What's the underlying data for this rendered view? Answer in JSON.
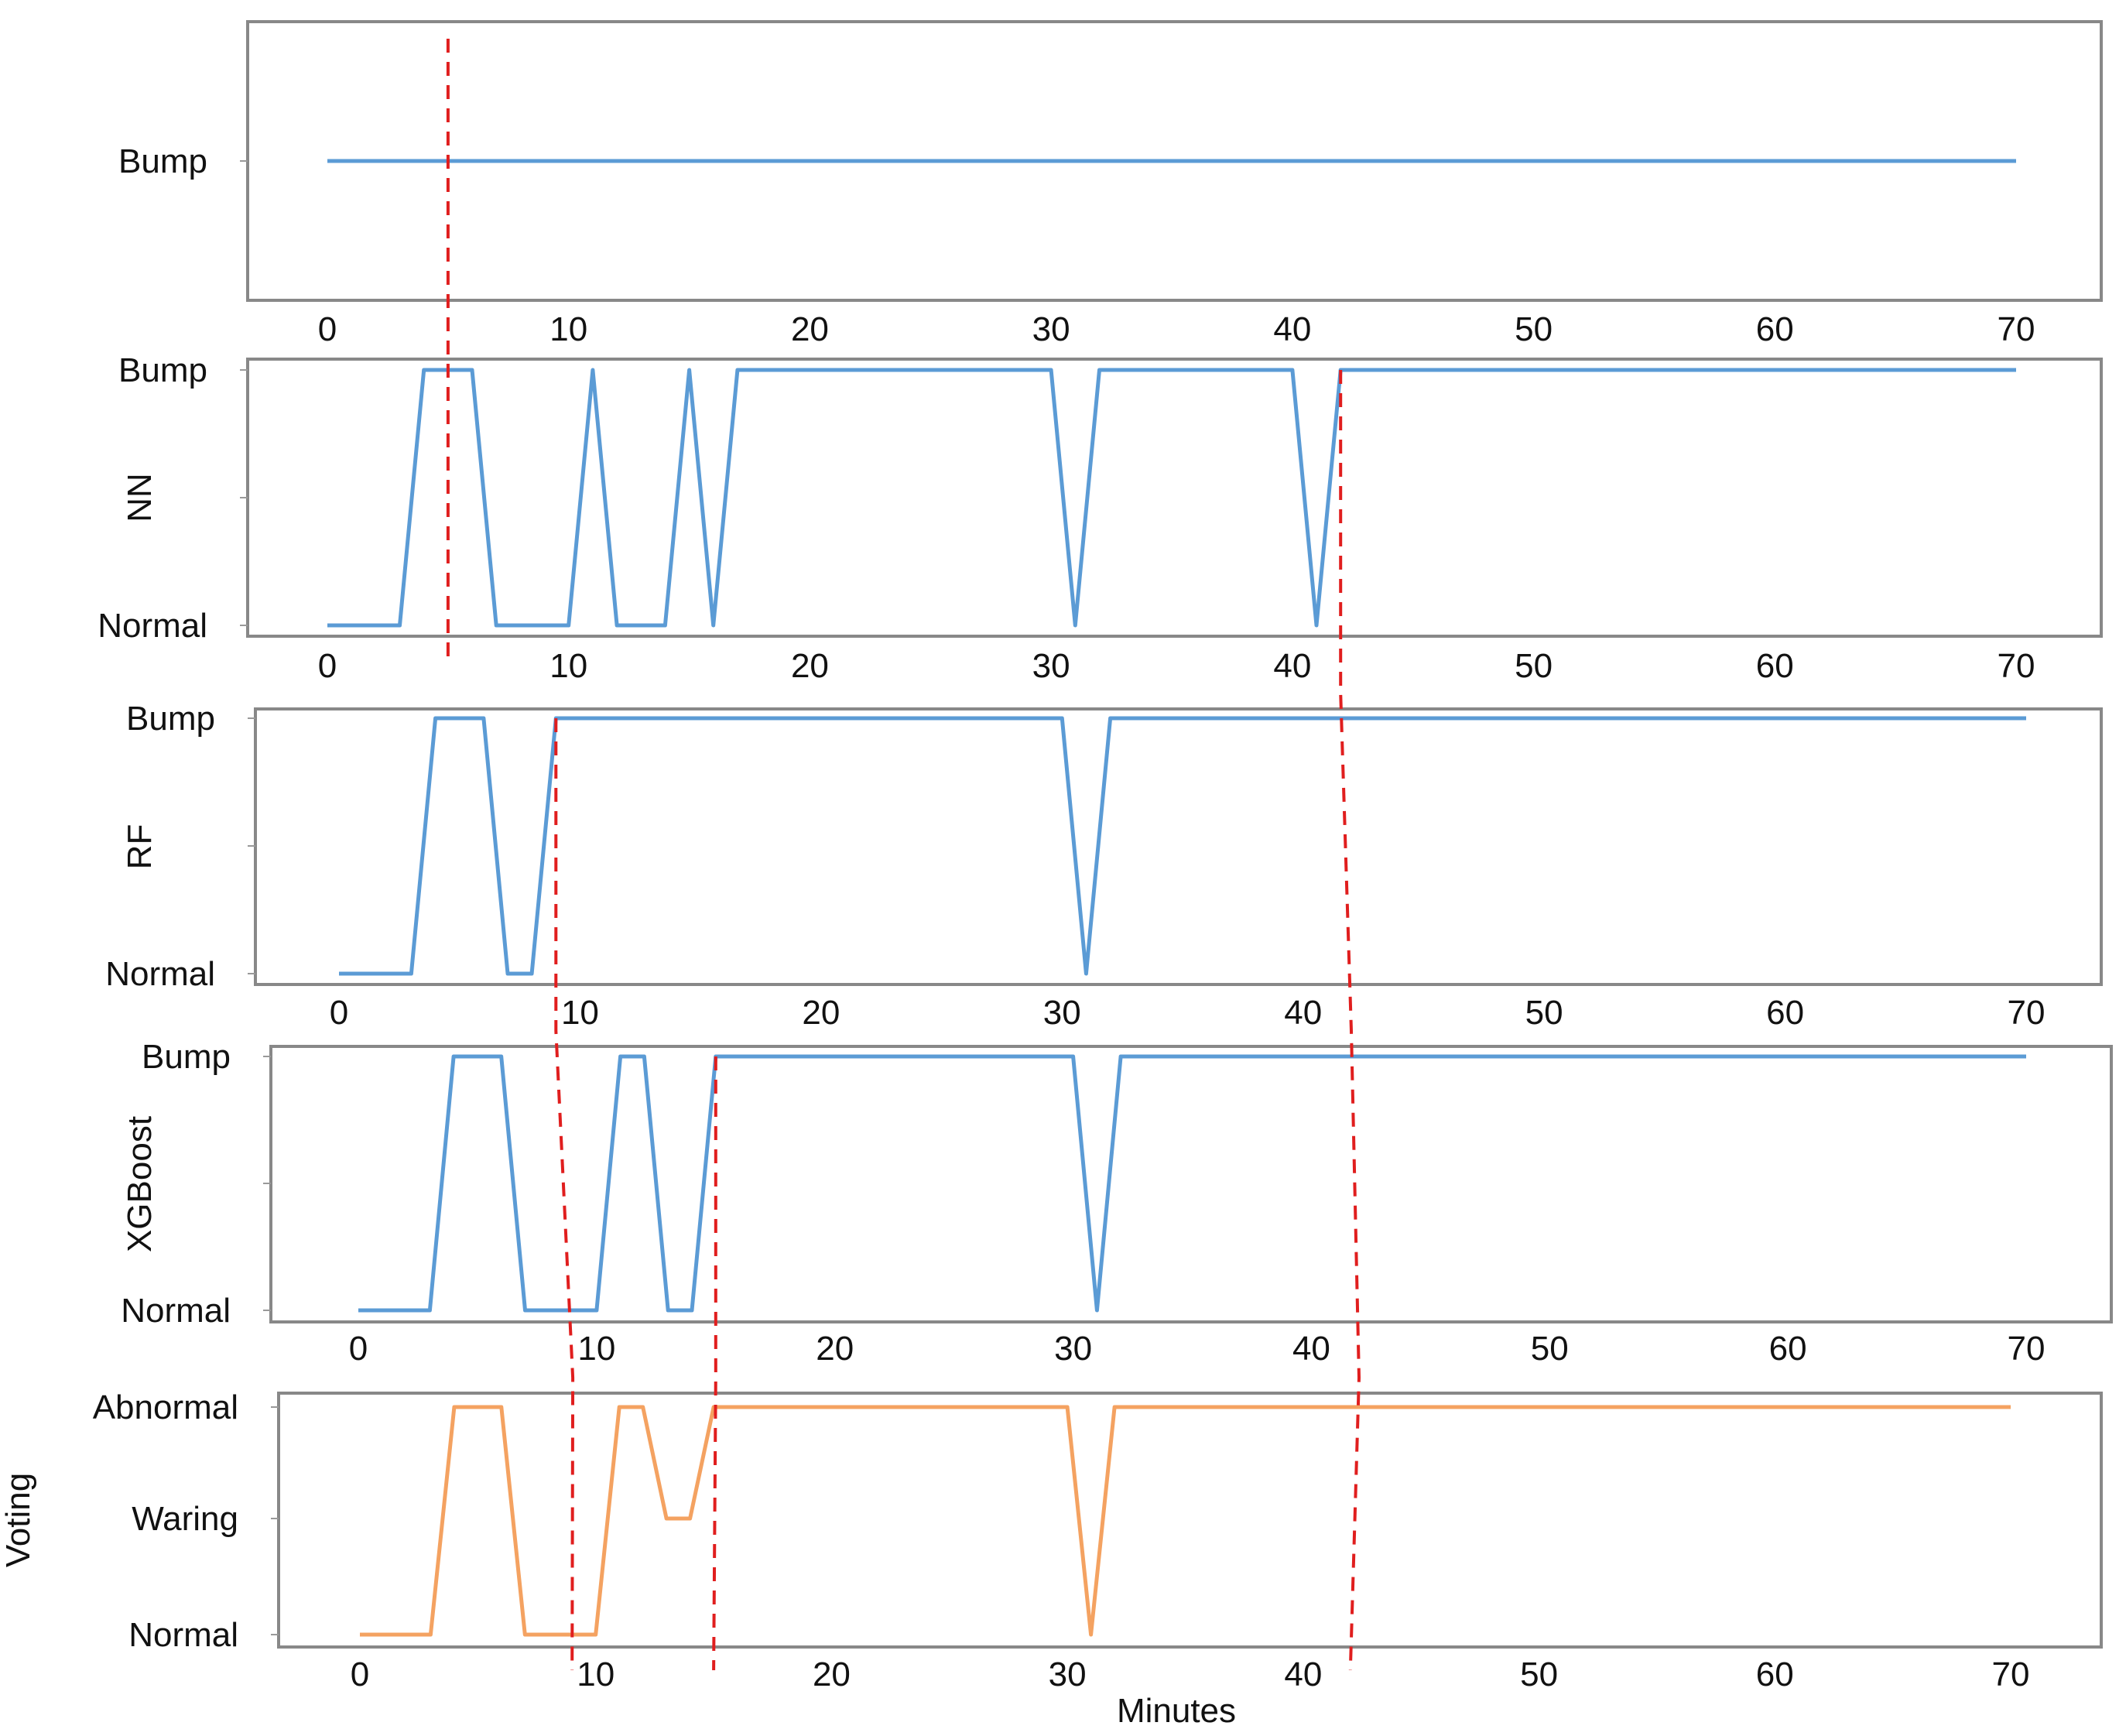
{
  "chart_data": [
    {
      "type": "line",
      "ylabel": "",
      "xlabel": "",
      "x_ticks": [
        0,
        10,
        20,
        30,
        40,
        50,
        60,
        70
      ],
      "xlim": [
        0,
        70
      ],
      "y_categories": [
        "Bump"
      ],
      "color": "#5b9bd5",
      "series": [
        {
          "x": [
            0,
            70
          ],
          "y": [
            0,
            0
          ]
        }
      ]
    },
    {
      "type": "line",
      "ylabel": "NN",
      "xlabel": "",
      "x_ticks": [
        0,
        10,
        20,
        30,
        40,
        50,
        60,
        70
      ],
      "xlim": [
        0,
        70
      ],
      "y_categories": [
        "Normal",
        "Bump"
      ],
      "color": "#5b9bd5",
      "series": [
        {
          "x": [
            0,
            3,
            4,
            6,
            7,
            10,
            11,
            12,
            14,
            15,
            16,
            17,
            30,
            31,
            32,
            40,
            41,
            42,
            70
          ],
          "y": [
            0,
            0,
            1,
            1,
            0,
            0,
            1,
            0,
            0,
            1,
            0,
            1,
            1,
            0,
            1,
            1,
            0,
            1,
            1
          ]
        }
      ]
    },
    {
      "type": "line",
      "ylabel": "RF",
      "xlabel": "",
      "x_ticks": [
        0,
        10,
        20,
        30,
        40,
        50,
        60,
        70
      ],
      "xlim": [
        0,
        70
      ],
      "y_categories": [
        "Normal",
        "Bump"
      ],
      "color": "#5b9bd5",
      "series": [
        {
          "x": [
            0,
            3,
            4,
            6,
            7,
            8,
            9,
            30,
            31,
            32,
            70
          ],
          "y": [
            0,
            0,
            1,
            1,
            0,
            0,
            1,
            1,
            0,
            1,
            1
          ]
        }
      ]
    },
    {
      "type": "line",
      "ylabel": "XGBoost",
      "xlabel": "",
      "x_ticks": [
        0,
        10,
        20,
        30,
        40,
        50,
        60,
        70
      ],
      "xlim": [
        0,
        70
      ],
      "y_categories": [
        "Normal",
        "Bump"
      ],
      "color": "#5b9bd5",
      "series": [
        {
          "x": [
            0,
            3,
            4,
            6,
            7,
            10,
            11,
            12,
            13,
            14,
            15,
            30,
            31,
            32,
            70
          ],
          "y": [
            0,
            0,
            1,
            1,
            0,
            0,
            1,
            1,
            0,
            0,
            1,
            1,
            0,
            1,
            1
          ]
        }
      ]
    },
    {
      "type": "line",
      "ylabel": "Voting",
      "xlabel": "Minutes",
      "x_ticks": [
        0,
        10,
        20,
        30,
        40,
        50,
        60,
        70
      ],
      "xlim": [
        0,
        70
      ],
      "y_categories": [
        "Normal",
        "Waring",
        "Abnormal"
      ],
      "color": "#f4a261",
      "series": [
        {
          "x": [
            0,
            3,
            4,
            6,
            7,
            10,
            11,
            12,
            13,
            14,
            15,
            30,
            31,
            32,
            70
          ],
          "y": [
            0,
            0,
            2,
            2,
            0,
            0,
            2,
            2,
            1,
            1,
            2,
            2,
            0,
            2,
            2
          ]
        }
      ]
    }
  ],
  "markers": {
    "color": "#e01e1e",
    "lines": [
      {
        "x": 5,
        "panels": [
          0,
          1
        ]
      },
      {
        "x": 42,
        "panels": [
          1,
          4
        ]
      },
      {
        "x": 9,
        "panels": [
          2,
          4
        ]
      },
      {
        "x": 15,
        "panels": [
          3,
          4
        ]
      }
    ]
  }
}
